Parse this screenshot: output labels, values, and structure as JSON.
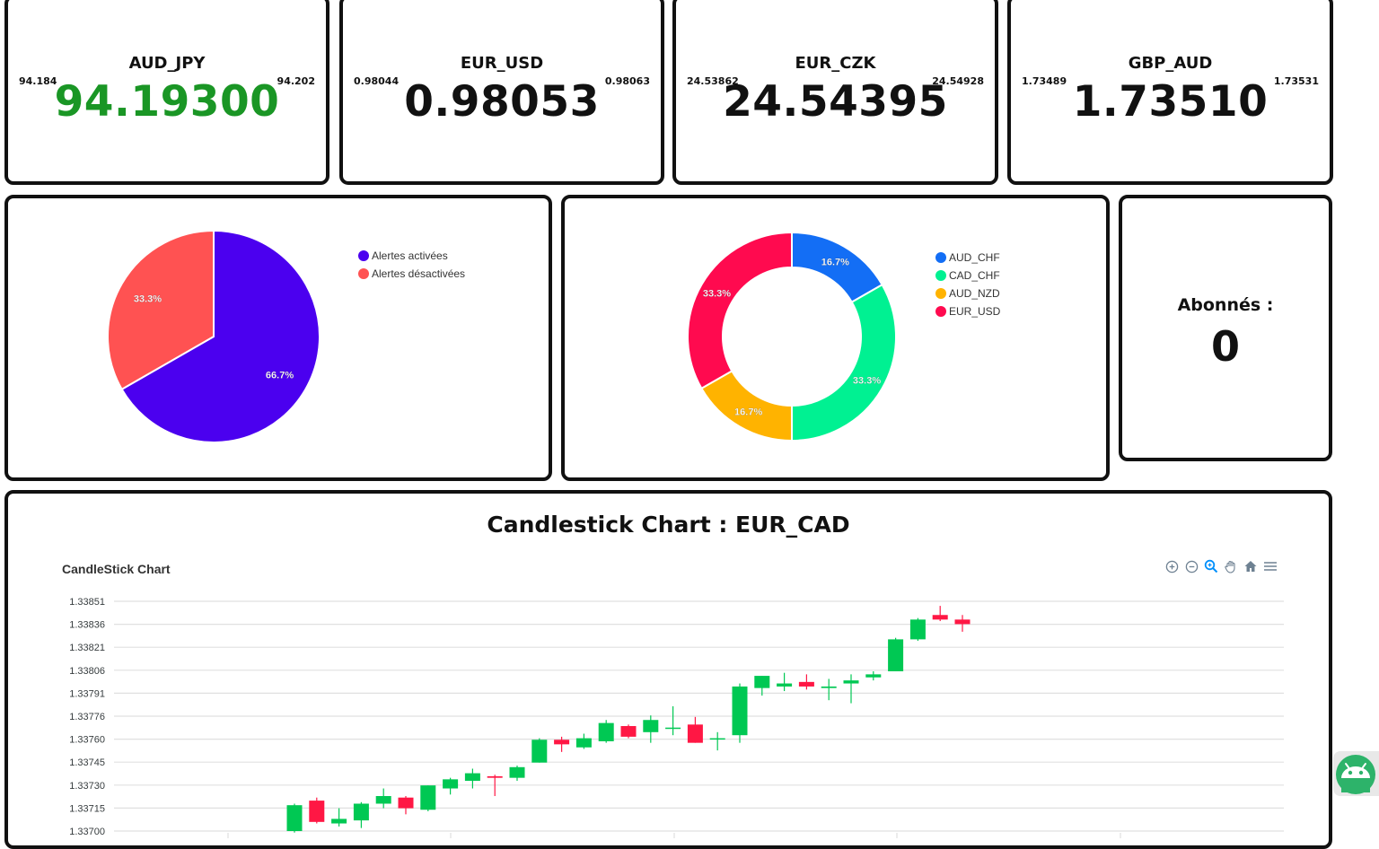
{
  "tickers": [
    {
      "symbol": "AUD_JPY",
      "low": "94.184",
      "high": "94.202",
      "price": "94.19300",
      "color": "#1a9625"
    },
    {
      "symbol": "EUR_USD",
      "low": "0.98044",
      "high": "0.98063",
      "price": "0.98053",
      "color": "#111111"
    },
    {
      "symbol": "EUR_CZK",
      "low": "24.53862",
      "high": "24.54928",
      "price": "24.54395",
      "color": "#111111"
    },
    {
      "symbol": "GBP_AUD",
      "low": "1.73489",
      "high": "1.73531",
      "price": "1.73510",
      "color": "#111111"
    }
  ],
  "alerts_pie": {
    "legend": [
      "Alertes activées",
      "Alertes désactivées"
    ],
    "colors": [
      "#4b00ef",
      "#ff5252"
    ],
    "values": [
      66.7,
      33.3
    ],
    "labels": [
      "66.7%",
      "33.3%"
    ]
  },
  "pairs_donut": {
    "legend": [
      "AUD_CHF",
      "CAD_CHF",
      "AUD_NZD",
      "EUR_USD"
    ],
    "colors": [
      "#136ef5",
      "#00f192",
      "#ffb300",
      "#ff0a4f"
    ],
    "values": [
      16.7,
      33.3,
      16.7,
      33.3
    ],
    "labels": [
      "16.7%",
      "33.3%",
      "16.7%",
      "33.3%"
    ]
  },
  "subscribers": {
    "label": "Abonnés :",
    "value": "0"
  },
  "candlestick": {
    "title": "Candlestick Chart : EUR_CAD",
    "chart_subtitle": "CandleStick Chart",
    "toolbar": [
      "zoom-in-icon",
      "zoom-out-icon",
      "zoom-select-icon",
      "pan-icon",
      "reset-home-icon",
      "menu-icon"
    ],
    "up_color": "#00c853",
    "down_color": "#ff1744"
  },
  "chart_data": {
    "type": "candlestick",
    "title": "CandleStick Chart",
    "y_ticks": [
      "1.33851",
      "1.33836",
      "1.33821",
      "1.33806",
      "1.33791",
      "1.33776",
      "1.33760",
      "1.33745",
      "1.33730",
      "1.33715",
      "1.33700"
    ],
    "ylim": [
      1.337,
      1.33851
    ],
    "grid": true,
    "candles": [
      {
        "o": 1.337,
        "h": 1.33718,
        "l": 1.33699,
        "c": 1.33717
      },
      {
        "o": 1.3372,
        "h": 1.33722,
        "l": 1.33705,
        "c": 1.33706
      },
      {
        "o": 1.33705,
        "h": 1.33715,
        "l": 1.33703,
        "c": 1.33708
      },
      {
        "o": 1.33707,
        "h": 1.33719,
        "l": 1.33702,
        "c": 1.33718
      },
      {
        "o": 1.33718,
        "h": 1.33728,
        "l": 1.33715,
        "c": 1.33723
      },
      {
        "o": 1.33722,
        "h": 1.33723,
        "l": 1.33711,
        "c": 1.33715
      },
      {
        "o": 1.33714,
        "h": 1.3373,
        "l": 1.33713,
        "c": 1.3373
      },
      {
        "o": 1.33728,
        "h": 1.33735,
        "l": 1.33724,
        "c": 1.33734
      },
      {
        "o": 1.33733,
        "h": 1.33741,
        "l": 1.33728,
        "c": 1.33738
      },
      {
        "o": 1.33736,
        "h": 1.33737,
        "l": 1.33723,
        "c": 1.33735
      },
      {
        "o": 1.33735,
        "h": 1.33743,
        "l": 1.33733,
        "c": 1.33742
      },
      {
        "o": 1.33745,
        "h": 1.33761,
        "l": 1.33745,
        "c": 1.3376
      },
      {
        "o": 1.3376,
        "h": 1.33762,
        "l": 1.33752,
        "c": 1.33757
      },
      {
        "o": 1.33755,
        "h": 1.33764,
        "l": 1.33754,
        "c": 1.33761
      },
      {
        "o": 1.33759,
        "h": 1.33773,
        "l": 1.33758,
        "c": 1.33771
      },
      {
        "o": 1.33769,
        "h": 1.3377,
        "l": 1.33761,
        "c": 1.33762
      },
      {
        "o": 1.33765,
        "h": 1.33776,
        "l": 1.33758,
        "c": 1.33773
      },
      {
        "o": 1.33768,
        "h": 1.33782,
        "l": 1.33763,
        "c": 1.33768
      },
      {
        "o": 1.3377,
        "h": 1.33775,
        "l": 1.33758,
        "c": 1.33758
      },
      {
        "o": 1.33761,
        "h": 1.33765,
        "l": 1.33753,
        "c": 1.33761
      },
      {
        "o": 1.33763,
        "h": 1.33797,
        "l": 1.33758,
        "c": 1.33795
      },
      {
        "o": 1.33794,
        "h": 1.33802,
        "l": 1.33789,
        "c": 1.33802
      },
      {
        "o": 1.33795,
        "h": 1.33804,
        "l": 1.33792,
        "c": 1.33797
      },
      {
        "o": 1.33798,
        "h": 1.33803,
        "l": 1.33793,
        "c": 1.33795
      },
      {
        "o": 1.33794,
        "h": 1.338,
        "l": 1.33786,
        "c": 1.33795
      },
      {
        "o": 1.33797,
        "h": 1.33803,
        "l": 1.33784,
        "c": 1.33799
      },
      {
        "o": 1.33801,
        "h": 1.33805,
        "l": 1.33799,
        "c": 1.33803
      },
      {
        "o": 1.33805,
        "h": 1.33827,
        "l": 1.33805,
        "c": 1.33826
      },
      {
        "o": 1.33826,
        "h": 1.3384,
        "l": 1.33825,
        "c": 1.33839
      },
      {
        "o": 1.33842,
        "h": 1.33848,
        "l": 1.33838,
        "c": 1.33839
      },
      {
        "o": 1.33839,
        "h": 1.33842,
        "l": 1.33831,
        "c": 1.33836
      }
    ]
  }
}
